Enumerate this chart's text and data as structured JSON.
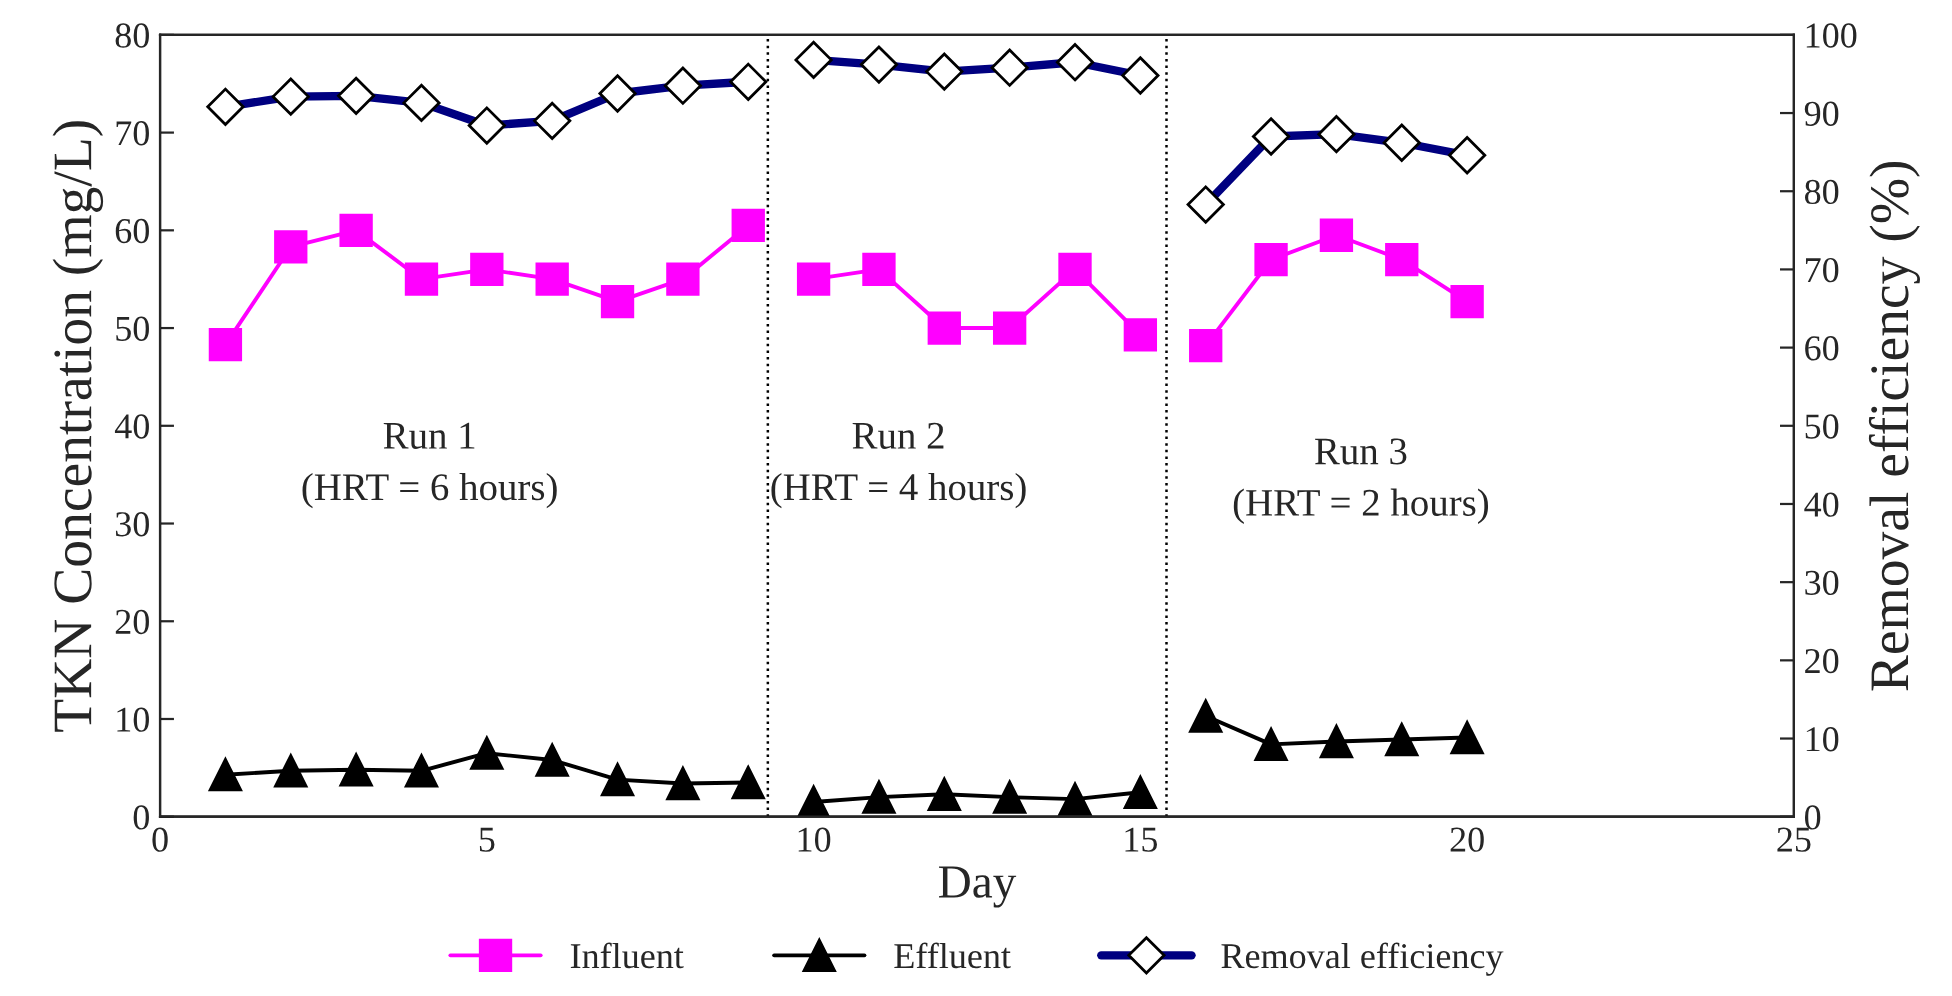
{
  "chart_data": {
    "type": "line",
    "xlabel": "Day",
    "ylabel": "TKN Concentration (mg/L)",
    "y2label": "Removal efficiency (%)",
    "xlim": [
      0,
      25
    ],
    "xticks": [
      0,
      5,
      10,
      15,
      20,
      25
    ],
    "ylim": [
      0,
      80
    ],
    "yticks": [
      0,
      10,
      20,
      30,
      40,
      50,
      60,
      70,
      80
    ],
    "y2lim": [
      0,
      100
    ],
    "y2ticks": [
      0,
      10,
      20,
      30,
      40,
      50,
      60,
      70,
      80,
      90,
      100
    ],
    "legend": "bottom",
    "grid": false,
    "series": [
      {
        "name": "Influent",
        "color": "#ff00ff",
        "marker": "square",
        "x": [
          1,
          2,
          3,
          4,
          5,
          6,
          7,
          8,
          9
        ],
        "values": [
          48.3,
          58.3,
          60,
          55,
          56,
          55,
          52.7,
          55,
          60.5
        ]
      },
      {
        "color": "#ff00ff",
        "marker": "square",
        "x": [
          10,
          11,
          12,
          13,
          14,
          15
        ],
        "values": [
          55,
          56,
          50,
          50,
          56,
          49.3
        ]
      },
      {
        "color": "#ff00ff",
        "marker": "square",
        "x": [
          16,
          17,
          18,
          19,
          20
        ],
        "values": [
          48.2,
          57,
          59.5,
          57,
          52.7
        ]
      },
      {
        "name": "Effluent",
        "color": "#000000",
        "marker": "triangle",
        "x": [
          1,
          2,
          3,
          4,
          5,
          6,
          7,
          8,
          9
        ],
        "values": [
          4.3,
          4.7,
          4.8,
          4.7,
          6.5,
          5.8,
          3.8,
          3.4,
          3.5
        ]
      },
      {
        "color": "#000000",
        "marker": "triangle",
        "x": [
          10,
          11,
          12,
          13,
          14,
          15
        ],
        "values": [
          1.5,
          2,
          2.3,
          2,
          1.8,
          2.5
        ]
      },
      {
        "color": "#000000",
        "marker": "triangle",
        "x": [
          16,
          17,
          18,
          19,
          20
        ],
        "values": [
          10.3,
          7.4,
          7.7,
          7.9,
          8.1
        ]
      },
      {
        "name": "Removal efficiency",
        "color": "#000080",
        "marker": "diamond",
        "axis": "y2",
        "x": [
          1,
          2,
          3,
          4,
          5,
          6,
          7,
          8,
          9
        ],
        "values": [
          90.8,
          92.1,
          92.2,
          91.3,
          88.4,
          89,
          92.5,
          93.5,
          94
        ]
      },
      {
        "color": "#000080",
        "marker": "diamond",
        "axis": "y2",
        "x": [
          10,
          11,
          12,
          13,
          14,
          15
        ],
        "values": [
          96.8,
          96.2,
          95.3,
          95.8,
          96.5,
          94.8
        ]
      },
      {
        "color": "#000080",
        "marker": "diamond",
        "axis": "y2",
        "x": [
          16,
          17,
          18,
          19,
          20
        ],
        "values": [
          78.3,
          87,
          87.3,
          86.2,
          84.6
        ]
      }
    ],
    "ref_lines": [
      {
        "axis": "x",
        "value": 9.3,
        "color": "#000000",
        "line_style": "dotted"
      },
      {
        "axis": "x",
        "value": 15.4,
        "color": "#000000",
        "line_style": "dotted"
      }
    ],
    "annotations": [
      "Run 1\n(HRT = 6 hours)",
      "Run 2\n(HRT = 4 hours)",
      "Run 3\n(HRT = 2 hours)"
    ]
  }
}
